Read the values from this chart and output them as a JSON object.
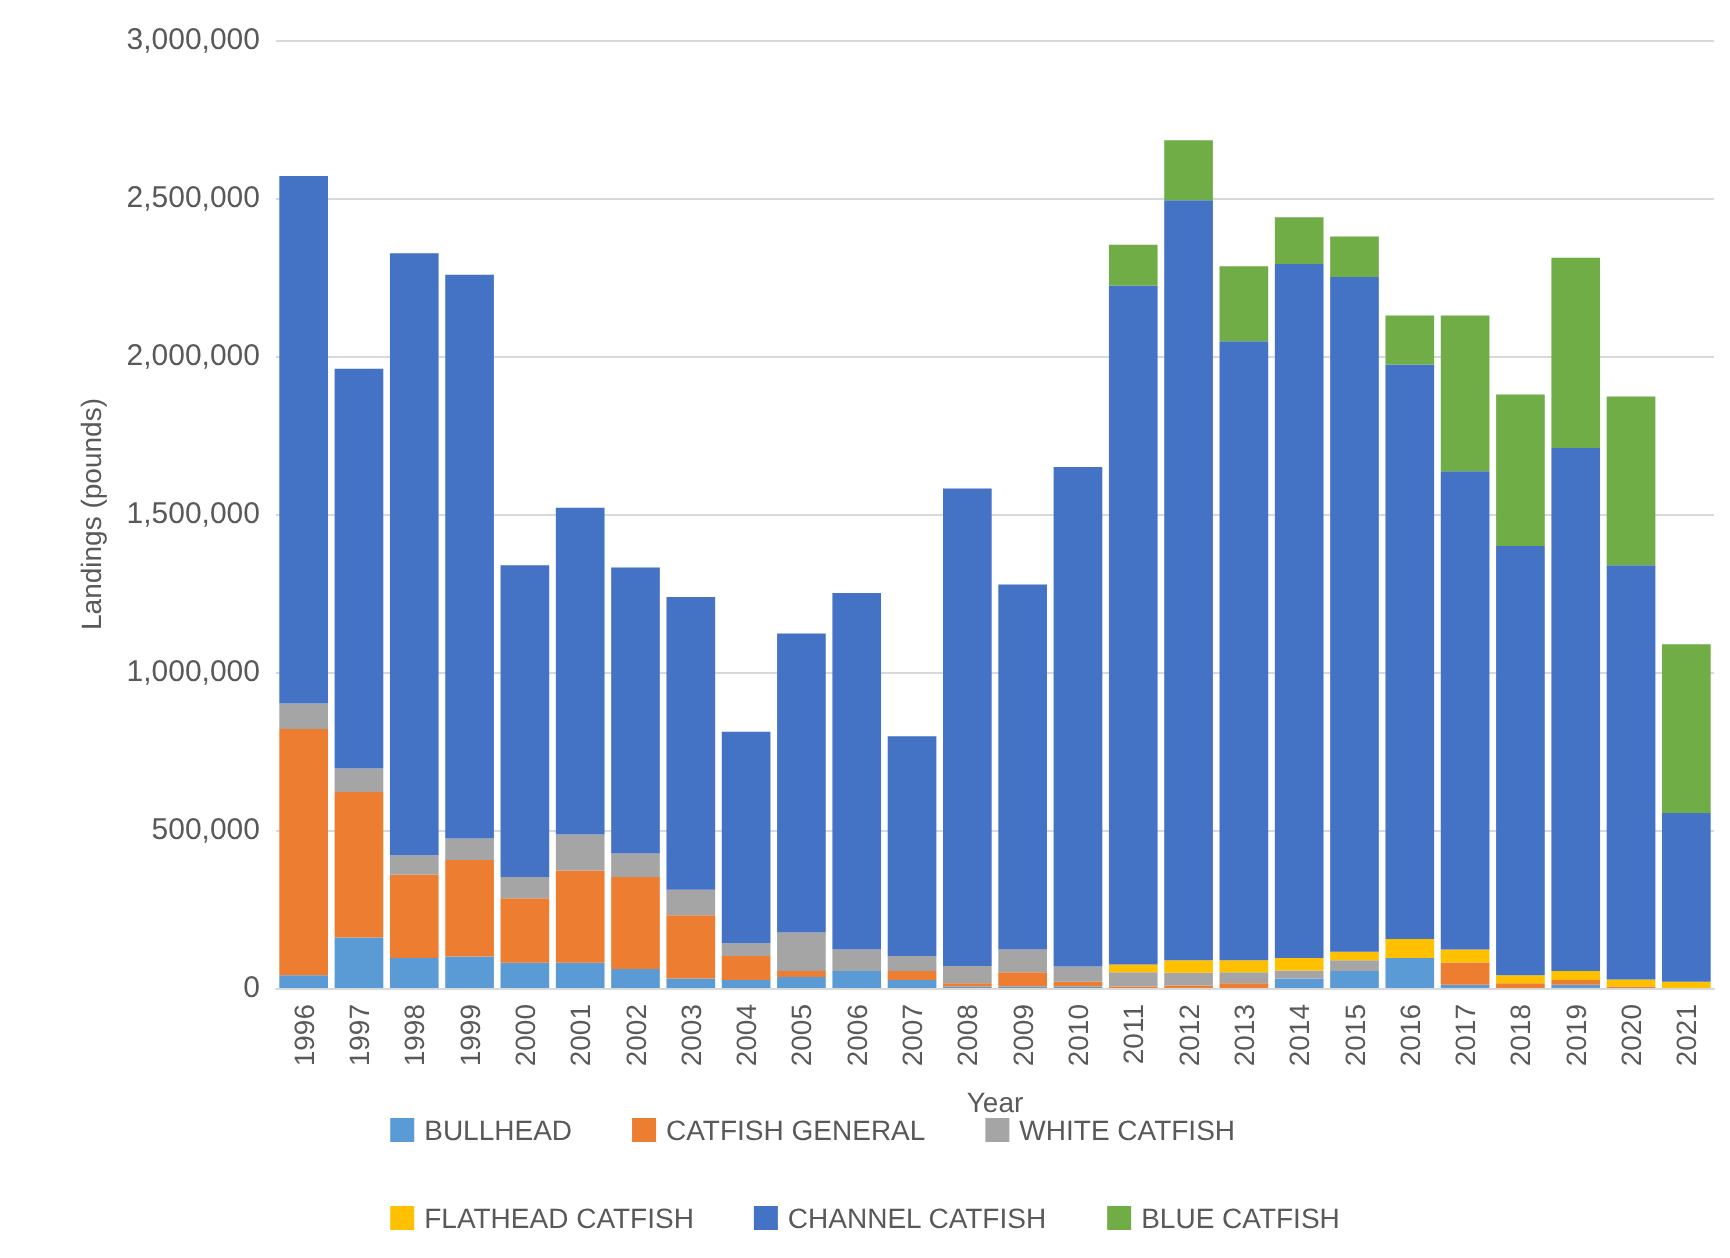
{
  "chart_data": {
    "type": "bar",
    "stacked": true,
    "xlabel": "Year",
    "ylabel": "Landings (pounds)",
    "categories": [
      "1996",
      "1997",
      "1998",
      "1999",
      "2000",
      "2001",
      "2002",
      "2003",
      "2004",
      "2005",
      "2006",
      "2007",
      "2008",
      "2009",
      "2010",
      "2011",
      "2012",
      "2013",
      "2014",
      "2015",
      "2016",
      "2017",
      "2018",
      "2019",
      "2020",
      "2021"
    ],
    "series": [
      {
        "name": "BULLHEAD",
        "color": "#5b9bd5",
        "values": [
          40000,
          160000,
          95000,
          100000,
          80000,
          80000,
          60000,
          30000,
          25000,
          35000,
          54000,
          25000,
          5000,
          5000,
          5000,
          0,
          0,
          0,
          30000,
          54000,
          95000,
          10000,
          0,
          10000,
          0,
          0
        ]
      },
      {
        "name": "CATFISH GENERAL",
        "color": "#ed7d31",
        "values": [
          780000,
          460000,
          263000,
          305000,
          204000,
          292000,
          291000,
          200000,
          76000,
          19000,
          0,
          29000,
          10000,
          45000,
          15000,
          5000,
          8000,
          15000,
          0,
          0,
          0,
          71000,
          15000,
          15000,
          5000,
          0
        ]
      },
      {
        "name": "WHITE CATFISH",
        "color": "#a5a5a5",
        "values": [
          80000,
          75000,
          62000,
          68000,
          67000,
          114000,
          75000,
          81000,
          41000,
          122000,
          68000,
          47000,
          55000,
          72000,
          48000,
          45000,
          40000,
          35000,
          25000,
          34000,
          0,
          0,
          0,
          0,
          0,
          0
        ]
      },
      {
        "name": "FLATHEAD CATFISH",
        "color": "#ffc000",
        "values": [
          0,
          0,
          0,
          0,
          0,
          0,
          0,
          0,
          0,
          0,
          0,
          0,
          0,
          0,
          0,
          24000,
          40000,
          38000,
          40000,
          27000,
          60000,
          41000,
          25000,
          29000,
          22000,
          20000
        ]
      },
      {
        "name": "CHANNEL CATFISH",
        "color": "#4472c4",
        "values": [
          1670000,
          1265000,
          1905000,
          1784000,
          987000,
          1034000,
          905000,
          926000,
          669000,
          946000,
          1128000,
          696000,
          1511000,
          1155000,
          1581000,
          2149000,
          2405000,
          1959000,
          2196000,
          2135000,
          1818000,
          1513000,
          1359000,
          1655000,
          1311000,
          534000
        ]
      },
      {
        "name": "BLUE CATFISH",
        "color": "#70ad47",
        "values": [
          0,
          0,
          0,
          0,
          0,
          0,
          0,
          0,
          0,
          0,
          0,
          0,
          0,
          0,
          0,
          129000,
          190000,
          237000,
          148000,
          128000,
          155000,
          493000,
          479000,
          602000,
          534000,
          534000
        ]
      }
    ],
    "ylim": [
      0,
      3000000
    ],
    "yticks": [
      {
        "value": 0,
        "label": "0"
      },
      {
        "value": 500000,
        "label": "500,000"
      },
      {
        "value": 1000000,
        "label": "1,000,000"
      },
      {
        "value": 1500000,
        "label": "1,500,000"
      },
      {
        "value": 2000000,
        "label": "2,000,000"
      },
      {
        "value": 2500000,
        "label": "2,500,000"
      },
      {
        "value": 3000000,
        "label": "3,000,000"
      }
    ],
    "grid": "y",
    "legend": "bottom"
  }
}
